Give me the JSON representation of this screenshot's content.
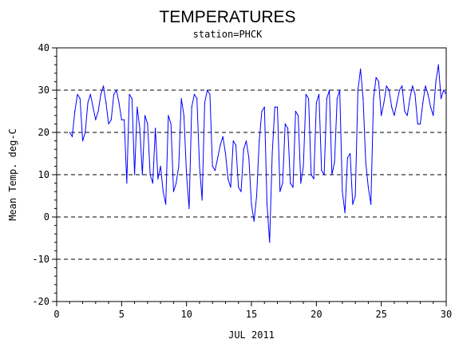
{
  "chart_data": {
    "type": "line",
    "title": "TEMPERATURES",
    "subtitle": "station=PHCK",
    "xlabel": "JUL 2011",
    "ylabel": "Mean Temp. deg-C",
    "xlim": [
      0,
      30
    ],
    "ylim": [
      -20,
      40
    ],
    "x_ticks": [
      0,
      5,
      10,
      15,
      20,
      25,
      30
    ],
    "y_ticks": [
      -20,
      -10,
      0,
      10,
      20,
      30,
      40
    ],
    "grid": "horizontal dashed at each y tick",
    "line_color": "#0000ff",
    "series": [
      {
        "x": [
          1.0,
          1.2,
          1.4,
          1.6,
          1.8,
          2.0,
          2.2,
          2.4,
          2.6,
          2.8,
          3.0,
          3.2,
          3.4,
          3.6,
          3.8,
          4.0,
          4.2,
          4.4,
          4.6,
          4.8,
          5.0,
          5.2,
          5.4,
          5.6,
          5.8,
          6.0,
          6.2,
          6.4,
          6.6,
          6.8,
          7.0,
          7.2,
          7.4,
          7.6,
          7.8,
          8.0,
          8.2,
          8.4,
          8.6,
          8.8,
          9.0,
          9.2,
          9.4,
          9.6,
          9.8,
          10.0,
          10.2,
          10.4,
          10.6,
          10.8,
          11.0,
          11.2,
          11.4,
          11.6,
          11.8,
          12.0,
          12.2,
          12.4,
          12.6,
          12.8,
          13.0,
          13.2,
          13.4,
          13.6,
          13.8,
          14.0,
          14.2,
          14.4,
          14.6,
          14.8,
          15.0,
          15.2,
          15.4,
          15.6,
          15.8,
          16.0,
          16.2,
          16.4,
          16.6,
          16.8,
          17.0,
          17.2,
          17.4,
          17.6,
          17.8,
          18.0,
          18.2,
          18.4,
          18.6,
          18.8,
          19.0,
          19.2,
          19.4,
          19.6,
          19.8,
          20.0,
          20.2,
          20.4,
          20.6,
          20.8,
          21.0,
          21.2,
          21.4,
          21.6,
          21.8,
          22.0,
          22.2,
          22.4,
          22.6,
          22.8,
          23.0,
          23.2,
          23.4,
          23.6,
          23.8,
          24.0,
          24.2,
          24.4,
          24.6,
          24.8,
          25.0,
          25.2,
          25.4,
          25.6,
          25.8,
          26.0,
          26.2,
          26.4,
          26.6,
          26.8,
          27.0,
          27.2,
          27.4,
          27.6,
          27.8,
          28.0,
          28.2,
          28.4,
          28.6,
          28.8,
          29.0,
          29.2,
          29.4,
          29.6,
          29.8,
          30.0
        ],
        "y": [
          20,
          19,
          25,
          29,
          28,
          18,
          20,
          27,
          29,
          26,
          23,
          25,
          29,
          31,
          27,
          22,
          23,
          29,
          30,
          27,
          23,
          23,
          8,
          29,
          28,
          10,
          26,
          21,
          10,
          24,
          22,
          10,
          8,
          21,
          9,
          12,
          6,
          3,
          24,
          22,
          6,
          8,
          12,
          28,
          24,
          10,
          2,
          26,
          29,
          28,
          12,
          4,
          27,
          30,
          29,
          12,
          11,
          14,
          17,
          19,
          15,
          9,
          7,
          18,
          17,
          7,
          6,
          16,
          18,
          14,
          3,
          -1,
          5,
          18,
          25,
          26,
          3,
          -6,
          15,
          26,
          26,
          6,
          8,
          22,
          21,
          8,
          7,
          25,
          24,
          8,
          12,
          29,
          28,
          10,
          9,
          27,
          29,
          11,
          10,
          28,
          30,
          10,
          13,
          28,
          30,
          6,
          1,
          14,
          15,
          3,
          5,
          30,
          35,
          28,
          13,
          7,
          3,
          28,
          33,
          32,
          24,
          27,
          31,
          30,
          26,
          24,
          27,
          30,
          31,
          25,
          24,
          28,
          31,
          29,
          22,
          22,
          27,
          31,
          29,
          26,
          24,
          32,
          36,
          28,
          30,
          29
        ]
      }
    ]
  }
}
